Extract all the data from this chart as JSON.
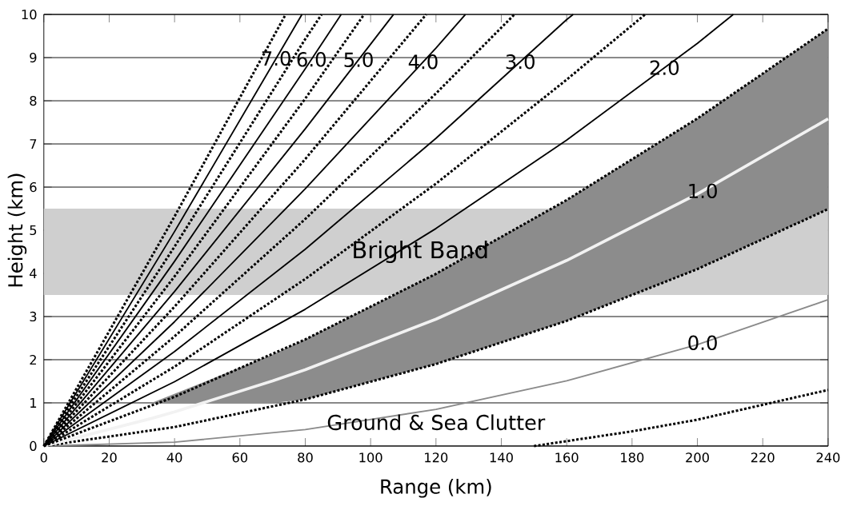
{
  "chart_data": {
    "type": "line",
    "xlabel": "Range (km)",
    "ylabel": "Height (km)",
    "xlim": [
      0,
      240
    ],
    "ylim": [
      0,
      10
    ],
    "xticks": [
      0,
      20,
      40,
      60,
      80,
      100,
      120,
      140,
      160,
      180,
      200,
      220,
      240
    ],
    "yticks": [
      0,
      1,
      2,
      3,
      4,
      5,
      6,
      7,
      8,
      9,
      10
    ],
    "grid": "y",
    "marker": "none",
    "bands": [
      {
        "axis": "y",
        "from": 3.5,
        "to": 5.5,
        "label": "Bright Band",
        "color": "#cfcfcf"
      }
    ],
    "annotations": [
      "Ground & Sea Clutter"
    ],
    "series": [
      {
        "color": "#000000",
        "line_style": "dotted",
        "x": [
          150,
          180,
          200,
          240
        ],
        "values": [
          0,
          0.34,
          0.61,
          1.3
        ]
      },
      {
        "name": "0.0",
        "color": "#8a8a8a",
        "line_style": "solid",
        "x": [
          0,
          40,
          80,
          120,
          160,
          200,
          240
        ],
        "values": [
          0,
          0.09,
          0.38,
          0.85,
          1.51,
          2.35,
          3.39
        ]
      },
      {
        "color": "#000000",
        "line_style": "dotted",
        "x": [
          0,
          40,
          80,
          120,
          160,
          200,
          240
        ],
        "values": [
          0,
          0.44,
          1.08,
          1.9,
          2.9,
          4.1,
          5.49
        ]
      },
      {
        "name": "1.0",
        "color": "#f2f2f2",
        "line_style": "solid",
        "x": [
          0,
          33,
          40,
          70,
          80,
          120,
          160,
          200,
          240
        ],
        "values": [
          0,
          0.64,
          0.79,
          1.51,
          1.77,
          2.94,
          4.3,
          5.84,
          7.58
        ],
        "lower": [
          null,
          1,
          null,
          1,
          1.08,
          1.9,
          2.9,
          4.1,
          5.49
        ],
        "upper": [
          null,
          1,
          null,
          2.12,
          2.47,
          3.99,
          5.7,
          7.59,
          9.67
        ]
      },
      {
        "color": "#000000",
        "line_style": "dotted",
        "x": [
          0,
          40,
          80,
          120,
          160,
          200,
          240
        ],
        "values": [
          0,
          1.14,
          2.47,
          3.99,
          5.7,
          7.59,
          9.67
        ]
      },
      {
        "name": "2.0",
        "color": "#000000",
        "line_style": "solid",
        "x": [
          0,
          40,
          80,
          120,
          160,
          200,
          211
        ],
        "values": [
          0,
          1.49,
          3.17,
          5.04,
          7.09,
          9.33,
          10
        ]
      },
      {
        "color": "#000000",
        "line_style": "dotted",
        "x": [
          0,
          40,
          80,
          120,
          160,
          184
        ],
        "values": [
          0,
          1.84,
          3.87,
          6.08,
          8.49,
          10
        ]
      },
      {
        "name": "3.0",
        "color": "#000000",
        "line_style": "solid",
        "x": [
          0,
          40,
          80,
          120,
          160,
          162
        ],
        "values": [
          0,
          2.19,
          4.56,
          7.13,
          9.88,
          10
        ]
      },
      {
        "color": "#000000",
        "line_style": "dotted",
        "x": [
          0,
          40,
          80,
          120,
          144
        ],
        "values": [
          0,
          2.54,
          5.26,
          8.17,
          10
        ]
      },
      {
        "name": "4.0",
        "color": "#000000",
        "line_style": "solid",
        "x": [
          0,
          40,
          80,
          120,
          129
        ],
        "values": [
          0,
          2.88,
          5.96,
          9.22,
          10
        ]
      },
      {
        "color": "#000000",
        "line_style": "dotted",
        "x": [
          0,
          40,
          80,
          117
        ],
        "values": [
          0,
          3.23,
          6.65,
          10
        ]
      },
      {
        "name": "5.0",
        "color": "#000000",
        "line_style": "solid",
        "x": [
          0,
          40,
          80,
          107
        ],
        "values": [
          0,
          3.58,
          7.35,
          10
        ]
      },
      {
        "color": "#000000",
        "line_style": "dotted",
        "x": [
          0,
          40,
          80,
          98
        ],
        "values": [
          0,
          3.93,
          8.05,
          10
        ]
      },
      {
        "name": "6.0",
        "color": "#000000",
        "line_style": "solid",
        "x": [
          0,
          40,
          80,
          91
        ],
        "values": [
          0,
          4.28,
          8.74,
          10
        ]
      },
      {
        "color": "#000000",
        "line_style": "dotted",
        "x": [
          0,
          40,
          80,
          85
        ],
        "values": [
          0,
          4.62,
          9.43,
          10
        ]
      },
      {
        "name": "7.0",
        "color": "#000000",
        "line_style": "solid",
        "x": [
          0,
          40,
          79
        ],
        "values": [
          0,
          4.97,
          10
        ]
      },
      {
        "color": "#000000",
        "line_style": "dotted",
        "x": [
          0,
          40,
          74
        ],
        "values": [
          0,
          5.32,
          10
        ]
      }
    ]
  }
}
